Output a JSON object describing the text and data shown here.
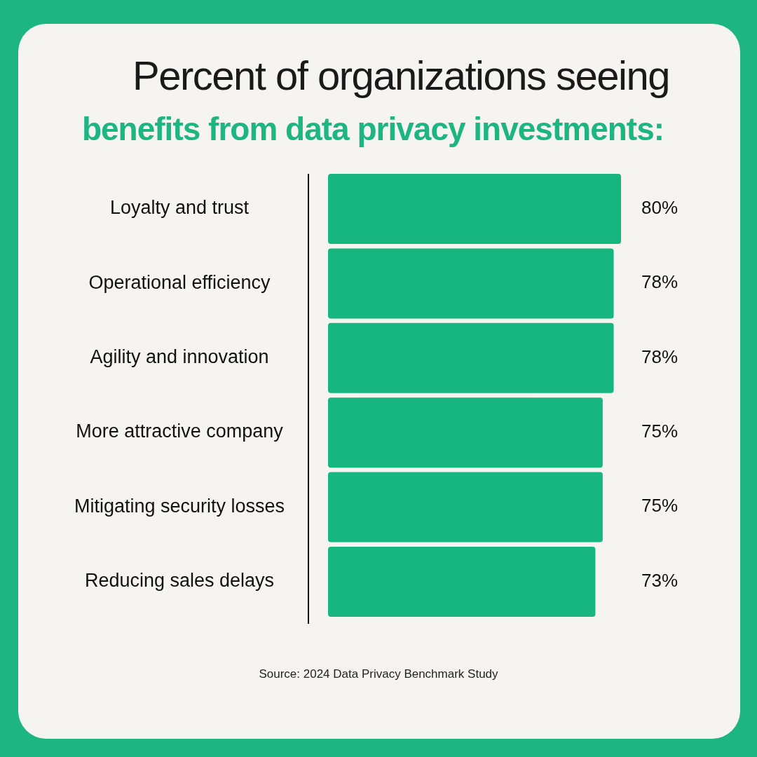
{
  "chart_data": {
    "type": "bar",
    "orientation": "horizontal",
    "title": "Percent of organizations seeing",
    "subtitle": "benefits from data privacy investments:",
    "categories": [
      "Loyalty and trust",
      "Operational efficiency",
      "Agility and innovation",
      "More attractive company",
      "Mitigating security losses",
      "Reducing sales delays"
    ],
    "values": [
      80,
      78,
      78,
      75,
      75,
      73
    ],
    "value_labels": [
      "80%",
      "78%",
      "78%",
      "75%",
      "75%",
      "73%"
    ],
    "color": "#17b57f",
    "annotations": [
      "Source: 2024 Data Privacy Benchmark Study"
    ]
  }
}
